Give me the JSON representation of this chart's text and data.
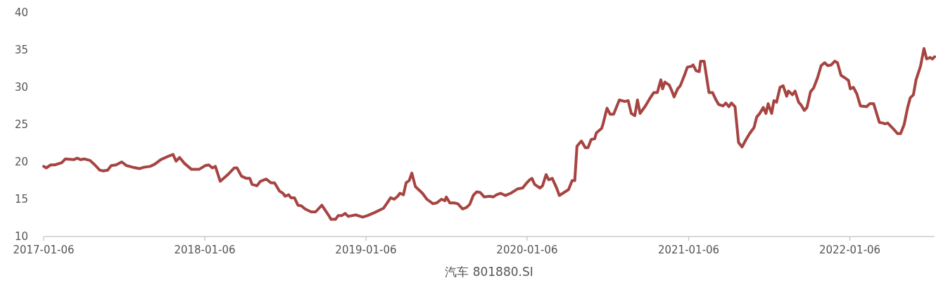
{
  "chart_data": {
    "type": "line",
    "xlabel": "汽车 801880.SI",
    "xlim": [
      "2017-01-06",
      "2022-07-17"
    ],
    "xticks": [
      "2017-01-06",
      "2018-01-06",
      "2019-01-06",
      "2020-01-06",
      "2021-01-06",
      "2022-01-06"
    ],
    "ylim": [
      10,
      40
    ],
    "yticks": [
      10,
      15,
      20,
      25,
      30,
      35,
      40
    ],
    "x": [
      "2017-01-06",
      "2017-01-12",
      "2017-01-22",
      "2017-01-31",
      "2017-02-16",
      "2017-02-24",
      "2017-03-15",
      "2017-03-23",
      "2017-03-31",
      "2017-04-08",
      "2017-04-21",
      "2017-05-02",
      "2017-05-13",
      "2017-05-21",
      "2017-05-31",
      "2017-06-08",
      "2017-06-19",
      "2017-07-02",
      "2017-07-13",
      "2017-07-26",
      "2017-08-11",
      "2017-08-22",
      "2017-09-04",
      "2017-09-15",
      "2017-09-28",
      "2017-10-17",
      "2017-10-26",
      "2017-11-02",
      "2017-11-10",
      "2017-11-21",
      "2017-12-07",
      "2017-12-24",
      "2018-01-07",
      "2018-01-15",
      "2018-01-23",
      "2018-01-30",
      "2018-02-10",
      "2018-03-01",
      "2018-03-14",
      "2018-03-20",
      "2018-03-30",
      "2018-04-10",
      "2018-04-18",
      "2018-04-23",
      "2018-05-04",
      "2018-05-12",
      "2018-05-25",
      "2018-06-05",
      "2018-06-13",
      "2018-06-24",
      "2018-07-02",
      "2018-07-07",
      "2018-07-15",
      "2018-07-20",
      "2018-07-28",
      "2018-08-05",
      "2018-08-13",
      "2018-08-21",
      "2018-09-04",
      "2018-09-14",
      "2018-09-28",
      "2018-10-13",
      "2018-10-19",
      "2018-10-29",
      "2018-11-04",
      "2018-11-12",
      "2018-11-20",
      "2018-11-27",
      "2018-12-14",
      "2018-12-30",
      "2019-01-09",
      "2019-01-25",
      "2019-02-15",
      "2019-02-23",
      "2019-03-03",
      "2019-03-11",
      "2019-03-19",
      "2019-03-24",
      "2019-04-01",
      "2019-04-07",
      "2019-04-14",
      "2019-04-20",
      "2019-04-28",
      "2019-05-14",
      "2019-05-24",
      "2019-06-07",
      "2019-06-15",
      "2019-06-26",
      "2019-07-04",
      "2019-07-07",
      "2019-07-15",
      "2019-07-25",
      "2019-08-02",
      "2019-08-13",
      "2019-08-22",
      "2019-08-29",
      "2019-09-06",
      "2019-09-14",
      "2019-09-22",
      "2019-10-01",
      "2019-10-13",
      "2019-10-21",
      "2019-10-29",
      "2019-11-07",
      "2019-11-18",
      "2019-11-30",
      "2019-12-16",
      "2019-12-27",
      "2020-01-04",
      "2020-01-12",
      "2020-01-17",
      "2020-01-23",
      "2020-02-04",
      "2020-02-10",
      "2020-02-18",
      "2020-02-24",
      "2020-03-03",
      "2020-03-13",
      "2020-03-19",
      "2020-04-09",
      "2020-04-17",
      "2020-04-23",
      "2020-04-28",
      "2020-05-08",
      "2020-05-17",
      "2020-05-23",
      "2020-05-30",
      "2020-06-07",
      "2020-06-11",
      "2020-06-23",
      "2020-06-27",
      "2020-07-05",
      "2020-07-12",
      "2020-07-20",
      "2020-08-02",
      "2020-08-14",
      "2020-08-22",
      "2020-08-29",
      "2020-09-06",
      "2020-09-12",
      "2020-09-18",
      "2020-09-30",
      "2020-10-09",
      "2020-10-19",
      "2020-10-27",
      "2020-11-04",
      "2020-11-08",
      "2020-11-13",
      "2020-11-23",
      "2020-11-29",
      "2020-12-04",
      "2020-12-12",
      "2020-12-18",
      "2020-12-28",
      "2021-01-03",
      "2021-01-12",
      "2021-01-16",
      "2021-01-23",
      "2021-01-30",
      "2021-02-02",
      "2021-02-10",
      "2021-02-21",
      "2021-03-01",
      "2021-03-09",
      "2021-03-15",
      "2021-03-25",
      "2021-03-31",
      "2021-04-07",
      "2021-04-13",
      "2021-04-21",
      "2021-04-29",
      "2021-05-07",
      "2021-05-15",
      "2021-05-24",
      "2021-06-03",
      "2021-06-09",
      "2021-06-16",
      "2021-06-24",
      "2021-06-30",
      "2021-07-05",
      "2021-07-13",
      "2021-07-18",
      "2021-07-24",
      "2021-08-01",
      "2021-08-08",
      "2021-08-16",
      "2021-08-20",
      "2021-08-29",
      "2021-09-04",
      "2021-09-12",
      "2021-09-18",
      "2021-09-25",
      "2021-10-01",
      "2021-10-09",
      "2021-10-16",
      "2021-10-25",
      "2021-11-02",
      "2021-11-10",
      "2021-11-17",
      "2021-11-25",
      "2021-12-03",
      "2021-12-09",
      "2021-12-17",
      "2021-12-25",
      "2022-01-03",
      "2022-01-07",
      "2022-01-14",
      "2022-01-22",
      "2022-01-30",
      "2022-02-13",
      "2022-02-20",
      "2022-03-01",
      "2022-03-14",
      "2022-03-22",
      "2022-03-27",
      "2022-04-02",
      "2022-04-15",
      "2022-04-24",
      "2022-05-01",
      "2022-05-09",
      "2022-05-17",
      "2022-05-23",
      "2022-05-30",
      "2022-06-05",
      "2022-06-15",
      "2022-06-23",
      "2022-06-29",
      "2022-07-07",
      "2022-07-12",
      "2022-07-17"
    ],
    "series": [
      {
        "color": "#a64442",
        "values": [
          19.4,
          19.2,
          19.6,
          19.6,
          19.9,
          20.4,
          20.3,
          20.5,
          20.3,
          20.4,
          20.2,
          19.6,
          18.9,
          18.8,
          18.9,
          19.5,
          19.6,
          20.0,
          19.5,
          19.3,
          19.1,
          19.3,
          19.4,
          19.7,
          20.3,
          20.8,
          21.0,
          20.1,
          20.6,
          19.8,
          19.0,
          19.0,
          19.5,
          19.6,
          19.2,
          19.4,
          17.4,
          18.4,
          19.2,
          19.2,
          18.1,
          17.8,
          17.8,
          17.0,
          16.8,
          17.4,
          17.7,
          17.2,
          17.2,
          16.1,
          15.8,
          15.4,
          15.6,
          15.2,
          15.2,
          14.2,
          14.1,
          13.7,
          13.3,
          13.3,
          14.2,
          12.9,
          12.3,
          12.3,
          12.8,
          12.8,
          13.1,
          12.7,
          12.9,
          12.6,
          12.8,
          13.2,
          13.8,
          14.5,
          15.2,
          15.0,
          15.4,
          15.8,
          15.6,
          17.2,
          17.5,
          18.5,
          16.7,
          15.8,
          15.0,
          14.4,
          14.5,
          15.0,
          14.8,
          15.3,
          14.5,
          14.5,
          14.4,
          13.7,
          13.9,
          14.3,
          15.5,
          16.0,
          15.9,
          15.3,
          15.4,
          15.3,
          15.6,
          15.8,
          15.5,
          15.8,
          16.4,
          16.5,
          17.1,
          17.6,
          17.8,
          17.0,
          16.5,
          16.8,
          18.3,
          17.6,
          17.8,
          16.5,
          15.5,
          16.3,
          17.5,
          17.5,
          22.1,
          22.8,
          21.9,
          21.9,
          23.0,
          23.1,
          23.9,
          24.5,
          25.3,
          27.2,
          26.4,
          26.4,
          28.3,
          28.1,
          28.2,
          26.5,
          26.2,
          28.3,
          26.5,
          27.5,
          28.4,
          29.3,
          29.3,
          31.0,
          29.8,
          30.7,
          30.3,
          29.5,
          28.7,
          29.8,
          30.2,
          31.7,
          32.7,
          32.8,
          33.0,
          32.2,
          32.1,
          33.5,
          33.5,
          29.3,
          29.3,
          28.3,
          27.7,
          27.5,
          27.9,
          27.4,
          27.9,
          27.4,
          22.6,
          22.0,
          22.9,
          23.8,
          24.6,
          26.0,
          26.5,
          27.3,
          26.5,
          27.8,
          26.5,
          28.2,
          28.0,
          30.0,
          30.2,
          28.8,
          29.5,
          29.0,
          29.5,
          28.0,
          27.6,
          26.9,
          27.3,
          29.4,
          29.9,
          31.3,
          32.9,
          33.3,
          32.9,
          33.0,
          33.5,
          33.3,
          31.6,
          31.3,
          30.9,
          29.8,
          30.0,
          29.1,
          27.5,
          27.4,
          27.8,
          27.8,
          25.3,
          25.2,
          25.1,
          25.2,
          24.4,
          23.8,
          23.8,
          25.0,
          27.3,
          28.6,
          29.0,
          31.0,
          32.8,
          35.2,
          33.8,
          34.0,
          33.8,
          34.1
        ]
      }
    ]
  }
}
